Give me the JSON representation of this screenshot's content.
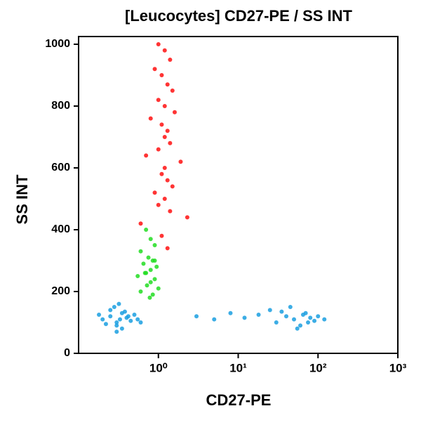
{
  "chart_data": {
    "type": "scatter",
    "title": "[Leucocytes] CD27-PE / SS INT",
    "x_label": "CD27-PE",
    "y_label": "SS INT",
    "x_scale": "log",
    "xlim": [
      0.1,
      1000
    ],
    "xticks": [
      {
        "value": 1,
        "label": "10⁰"
      },
      {
        "value": 10,
        "label": "10¹"
      },
      {
        "value": 100,
        "label": "10²"
      },
      {
        "value": 1000,
        "label": "10³"
      }
    ],
    "ylim": [
      0,
      1025
    ],
    "yticks": [
      0,
      200,
      400,
      600,
      800,
      1000
    ],
    "series": [
      {
        "color": "#ff1010",
        "x": [
          1.0,
          1.2,
          1.4,
          0.9,
          1.1,
          1.3,
          1.5,
          1.0,
          1.2,
          1.6,
          0.8,
          1.1,
          1.3,
          1.2,
          1.4,
          1.0,
          0.7,
          1.9,
          1.2,
          1.1,
          1.3,
          1.5,
          0.9,
          1.2,
          1.0,
          1.4,
          2.3,
          0.6,
          1.1,
          1.3
        ],
        "values": [
          1000,
          980,
          950,
          920,
          900,
          870,
          850,
          820,
          800,
          780,
          760,
          740,
          720,
          700,
          680,
          660,
          640,
          620,
          600,
          580,
          560,
          540,
          520,
          500,
          480,
          460,
          440,
          420,
          380,
          340
        ]
      },
      {
        "color": "#22dd22",
        "x": [
          0.7,
          0.8,
          0.9,
          0.6,
          0.75,
          0.85,
          0.65,
          0.95,
          0.8,
          0.7,
          0.55,
          0.9,
          0.8,
          0.72,
          1.0,
          0.6,
          0.85,
          0.78,
          0.68,
          0.9
        ],
        "values": [
          400,
          370,
          350,
          330,
          310,
          300,
          290,
          280,
          270,
          260,
          250,
          240,
          230,
          220,
          210,
          200,
          190,
          180,
          260,
          300
        ]
      },
      {
        "color": "#1a9fe0",
        "x": [
          0.2,
          0.25,
          0.3,
          0.35,
          0.4,
          0.3,
          0.25,
          0.45,
          0.5,
          0.35,
          0.28,
          0.33,
          0.6,
          0.22,
          0.38,
          0.42,
          0.3,
          0.18,
          0.55,
          0.32
        ],
        "values": [
          110,
          120,
          100,
          130,
          115,
          90,
          140,
          105,
          125,
          80,
          150,
          110,
          100,
          95,
          135,
          120,
          70,
          125,
          110,
          160
        ]
      },
      {
        "color": "#1a9fe0",
        "x": [
          3,
          5,
          8,
          12,
          18,
          25,
          30,
          40,
          50,
          60,
          70,
          80,
          90,
          100,
          120,
          45,
          55,
          65,
          35,
          75
        ],
        "values": [
          120,
          110,
          130,
          115,
          125,
          140,
          100,
          120,
          110,
          90,
          130,
          115,
          105,
          120,
          110,
          150,
          80,
          125,
          135,
          100
        ]
      }
    ]
  }
}
